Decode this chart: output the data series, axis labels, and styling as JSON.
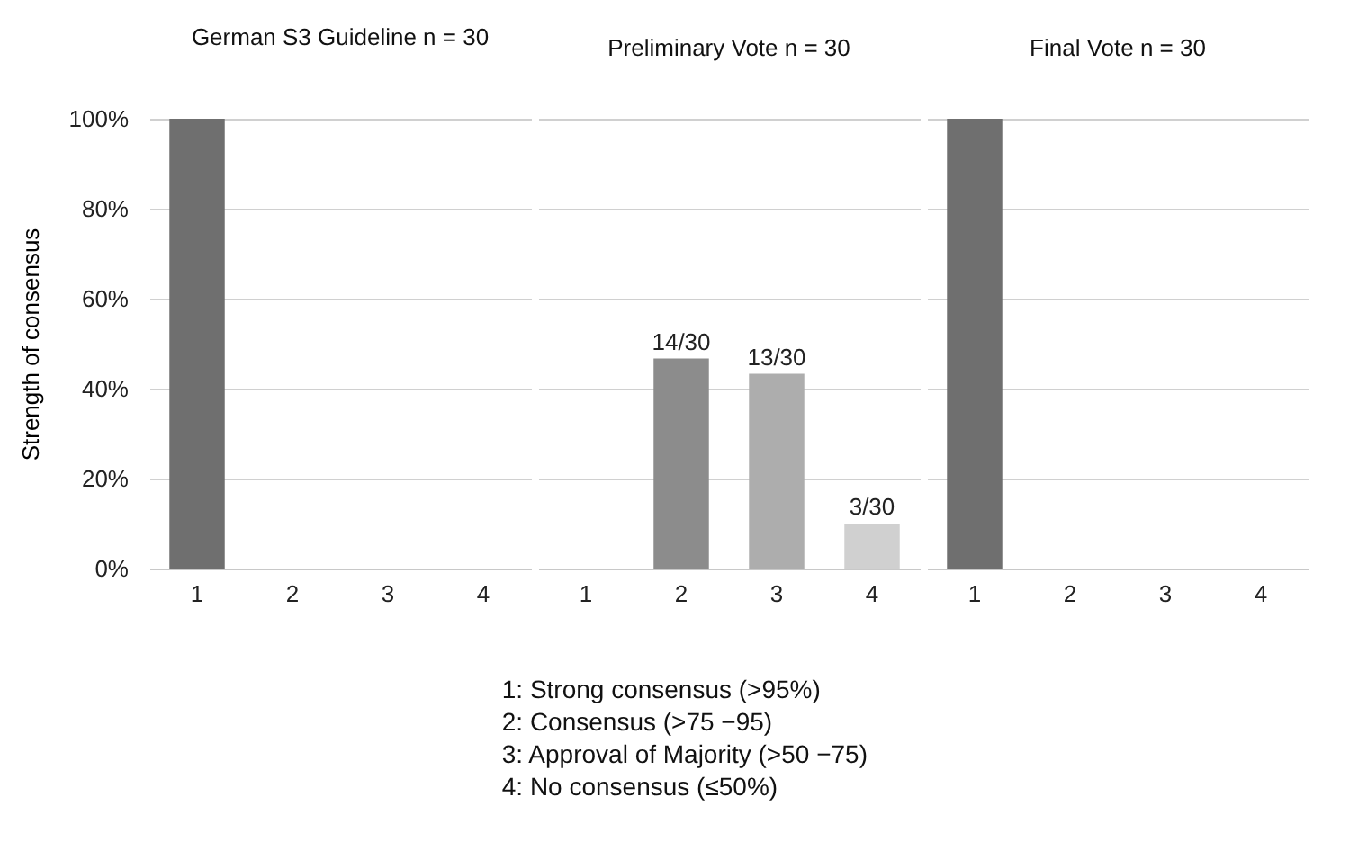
{
  "chart_data": [
    {
      "type": "bar",
      "title": "German S3 Guideline n = 30",
      "ylabel": "Strength of consensus",
      "categories": [
        "1",
        "2",
        "3",
        "4"
      ],
      "values": [
        100,
        0,
        0,
        0
      ],
      "colors": [
        "#6f6f6f",
        "#8c8c8c",
        "#adadad",
        "#d0d0d0"
      ],
      "ylim": [
        0,
        100
      ],
      "yticks": [
        {
          "value": 0,
          "label": "0%"
        },
        {
          "value": 20,
          "label": "20%"
        },
        {
          "value": 40,
          "label": "40%"
        },
        {
          "value": 60,
          "label": "60%"
        },
        {
          "value": 80,
          "label": "80%"
        },
        {
          "value": 100,
          "label": "100%"
        }
      ],
      "grid": "y"
    },
    {
      "type": "bar",
      "title": "Preliminary Vote n = 30",
      "categories": [
        "1",
        "2",
        "3",
        "4"
      ],
      "values": [
        0,
        46.7,
        43.3,
        10
      ],
      "value_labels": [
        null,
        "14/30",
        "13/30",
        "3/30"
      ],
      "colors": [
        "#6f6f6f",
        "#8c8c8c",
        "#adadad",
        "#d0d0d0"
      ],
      "ylim": [
        0,
        100
      ],
      "yticks": [
        0,
        20,
        40,
        60,
        80,
        100
      ],
      "grid": "y",
      "tick_labels": "x",
      "annotations": [
        "1: Strong consensus (>95%)",
        "2: Consensus (>75 −95)",
        "3: Approval of Majority (>50 −75)",
        "4: No consensus (≤50%)"
      ]
    },
    {
      "type": "bar",
      "title": "Final Vote n = 30",
      "categories": [
        "1",
        "2",
        "3",
        "4"
      ],
      "values": [
        100,
        0,
        0,
        0
      ],
      "colors": [
        "#6f6f6f",
        "#8c8c8c",
        "#adadad",
        "#d0d0d0"
      ],
      "ylim": [
        0,
        100
      ],
      "yticks": [
        0,
        20,
        40,
        60,
        80,
        100
      ],
      "grid": "y",
      "tick_labels": "x"
    }
  ]
}
